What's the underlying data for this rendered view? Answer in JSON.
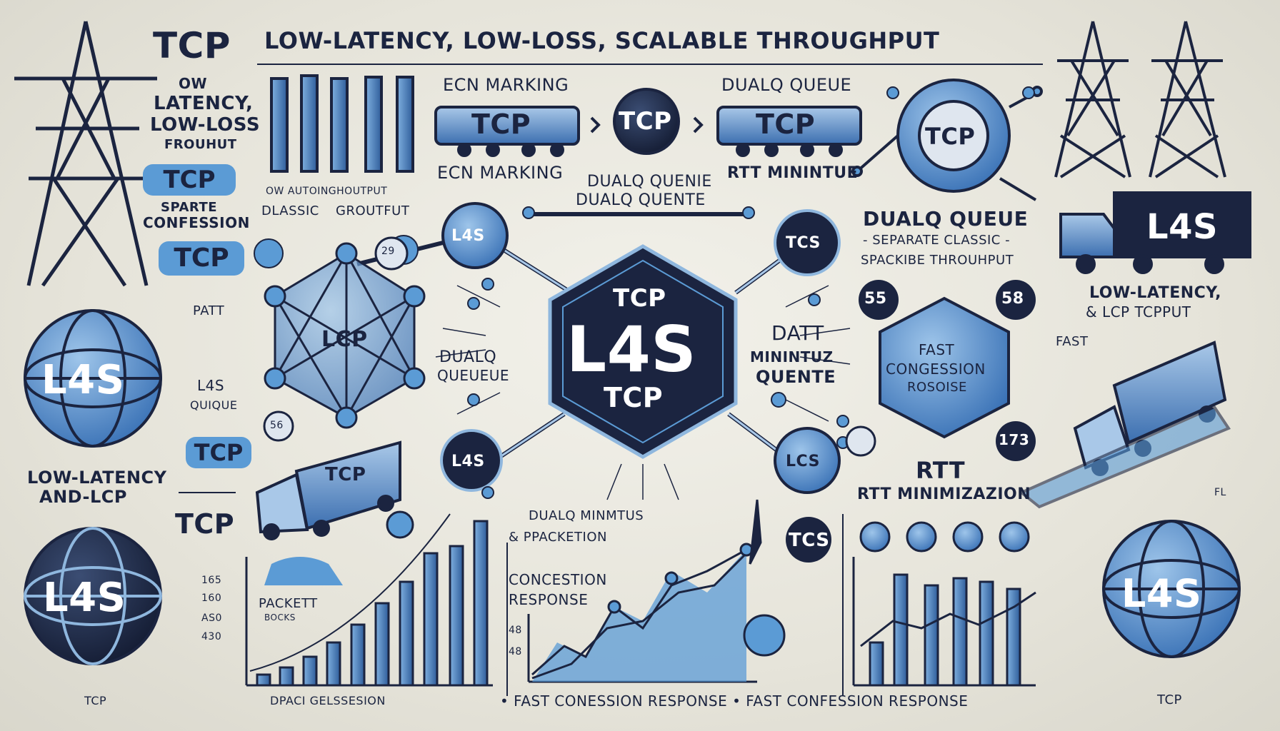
{
  "header": {
    "tcp": "TCP",
    "title": "LOW-LATENCY, LOW-LOSS, SCALABLE THROUGHPUT"
  },
  "left_column": {
    "ow": "OW",
    "latency": "LATENCY,",
    "low_loss": "LOW-LOSS",
    "frouhut": "FROUHUT",
    "tcp_pill_1": "TCP",
    "sparte": "SPARTE",
    "confession": "CONFESSION",
    "tcp_pill_2": "TCP",
    "globe_l4s": "L4S",
    "low_latency": "LOW-LATENCY",
    "and_lcp": "AND-LCP",
    "globe_l4s_2": "L4S",
    "footer_tcp": "TCP"
  },
  "top_middle": {
    "ecn_marking_top": "ECN MARKING",
    "car_tcp_1": "TCP",
    "circle_tcp": "TCP",
    "dualq_queue_top": "DUALQ QUEUE",
    "car_tcp_2": "TCP",
    "ecn_marking_bottom": "ECN MARKING",
    "dualq_quenie": "DUALQ QUENIE",
    "dualq_quente": "DUALQ QUENTE",
    "rtt_minintue": "RTT MININTUE",
    "ow_classic": "OW AUTOINGHOUTPUT",
    "dlassic": "DLASSIC",
    "grouhut": "GROUTFUT"
  },
  "center_hub": {
    "tcp_top": "TCP",
    "l4s": "L4S",
    "tcp_bottom": "TCP",
    "node_top_left": "L4S",
    "node_top_right": "TCS",
    "node_bottom_left": "L4S",
    "node_bottom_right": "LCS",
    "network_lcp": "LCP",
    "dualq": "DUALQ",
    "queueue": "QUEUEUE",
    "datt": "DATT",
    "minintuz": "MININTUZ",
    "quente": "QUENTE",
    "patt": "PATT",
    "l4s_small": "L4S",
    "quique": "QUIQUE"
  },
  "right_column": {
    "circle_tcp": "TCP",
    "dualq_queue": "DUALQ QUEUE",
    "separate_classic": "- SEPARATE CLASSIC -",
    "scalable_throughput": "SPACKIBE THROUHPUT",
    "truck_l4s": "L4S",
    "low_latency": "LOW-LATENCY,",
    "lcp_tcpput": "& LCP TCPPUT",
    "fast_congession_1": "FAST",
    "fast_congession_2": "CONGESSION",
    "fast_congession_3": "ROSOISE",
    "fast_small": "FAST",
    "badge_55": "55",
    "badge_58": "58",
    "badge_173": "173",
    "rtt": "RTT",
    "rtt_minimization": "RTT MINIMIZAZION",
    "globe_l4s": "L4S",
    "footer_tcp": "TCP",
    "flr": "FL"
  },
  "bottom": {
    "tcp_label": "TCP",
    "truck_tcp": "TCP",
    "packett": "PACKETT",
    "bocks": "BOCKS",
    "tick_1": "165",
    "tick_2": "160",
    "tick_3": "AS0",
    "tick_4": "430",
    "dpaci": "DPACI GELSSESION",
    "dualq_minimtus": "DUALQ MINMTUS",
    "packetion": "& PPACKETION",
    "concession": "CONCESTION",
    "response": "RESPONSE",
    "tick_a": "48",
    "tick_b": "48",
    "tcs_badge": "TCS",
    "fast_response": "• FAST CONESSION RESPONSE • FAST CONFESSION RESPONSE",
    "badge_29": "29",
    "badge_56": "56"
  },
  "colors": {
    "navy": "#1b2440",
    "blue": "#5b9bd5",
    "light_blue": "#a9c8e8",
    "background": "#e8e6dd"
  }
}
